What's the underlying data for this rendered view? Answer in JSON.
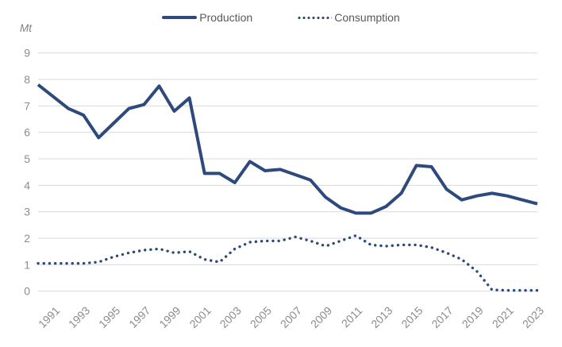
{
  "page": {
    "background": "#FFFFFF"
  },
  "legend": {
    "production_label": "Production",
    "consumption_label": "Consumption"
  },
  "chart_data": {
    "type": "line",
    "title": "",
    "unit_label": "Mt",
    "xlabel": "",
    "ylabel": "Mt",
    "ylim": [
      0,
      9
    ],
    "y_ticks": [
      0,
      1,
      2,
      3,
      4,
      5,
      6,
      7,
      8,
      9
    ],
    "grid": true,
    "legend_position": "top",
    "x": [
      1990,
      1991,
      1992,
      1993,
      1994,
      1995,
      1996,
      1997,
      1998,
      1999,
      2000,
      2001,
      2002,
      2003,
      2004,
      2005,
      2006,
      2007,
      2008,
      2009,
      2010,
      2011,
      2012,
      2013,
      2014,
      2015,
      2016,
      2017,
      2018,
      2019,
      2020,
      2021,
      2022,
      2023
    ],
    "x_tick_labels": [
      "1991",
      "1993",
      "1995",
      "1997",
      "1999",
      "2001",
      "2003",
      "2005",
      "2007",
      "2009",
      "2011",
      "2013",
      "2015",
      "2017",
      "2019",
      "2021",
      "2023"
    ],
    "series": [
      {
        "name": "Production",
        "style": "solid",
        "color": "#2E4A7C",
        "values": [
          7.8,
          7.35,
          6.9,
          6.65,
          5.8,
          6.35,
          6.9,
          7.05,
          7.75,
          6.8,
          7.3,
          4.45,
          4.45,
          4.1,
          4.9,
          4.55,
          4.6,
          4.4,
          4.2,
          3.55,
          3.15,
          2.95,
          2.95,
          3.2,
          3.7,
          4.75,
          4.7,
          3.85,
          3.45,
          3.6,
          3.7,
          3.6,
          3.45,
          3.3
        ]
      },
      {
        "name": "Consumption",
        "style": "dotted",
        "color": "#2E4A7C",
        "values": [
          1.05,
          1.05,
          1.05,
          1.05,
          1.1,
          1.3,
          1.45,
          1.55,
          1.6,
          1.45,
          1.5,
          1.2,
          1.1,
          1.6,
          1.85,
          1.9,
          1.9,
          2.05,
          1.9,
          1.7,
          1.9,
          2.1,
          1.75,
          1.7,
          1.75,
          1.75,
          1.65,
          1.45,
          1.2,
          0.75,
          0.05,
          0.03,
          0.03,
          0.03
        ]
      }
    ],
    "colors": {
      "grid": "#D9D9D9",
      "axis_text": "#8C8C8C",
      "legend_text": "#595959"
    }
  }
}
